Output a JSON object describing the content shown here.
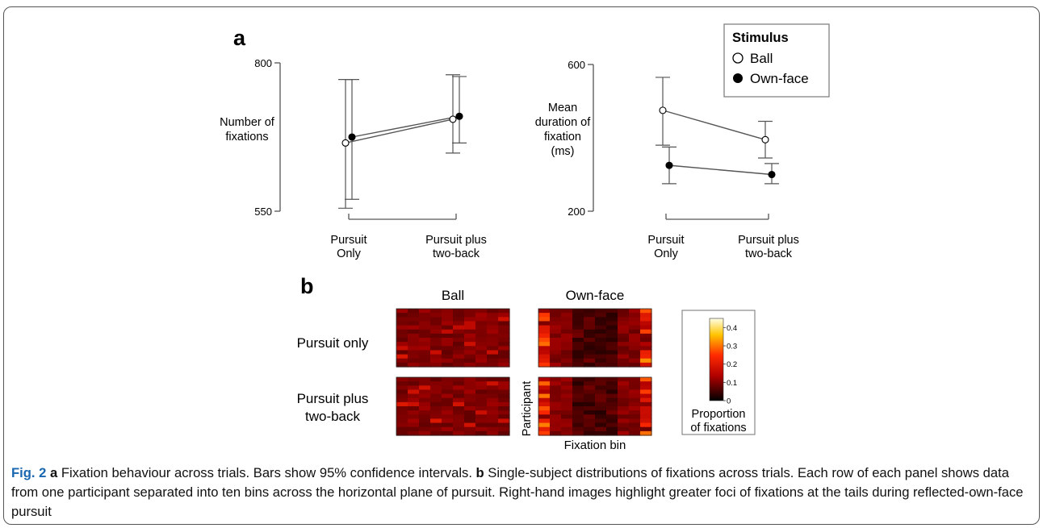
{
  "panel_a_label": "a",
  "panel_b_label": "b",
  "legend": {
    "title": "Stimulus",
    "items": [
      {
        "label": "Ball",
        "marker": "open-circle"
      },
      {
        "label": "Own-face",
        "marker": "filled-circle"
      }
    ]
  },
  "chart_data": [
    {
      "type": "line",
      "ylabel_lines": [
        "Number of",
        "fixations"
      ],
      "ylim": [
        550,
        800
      ],
      "yticks": [
        "800",
        "550"
      ],
      "categories": [
        [
          "Pursuit",
          "Only"
        ],
        [
          "Pursuit plus",
          "two-back"
        ]
      ],
      "series": [
        {
          "name": "Ball",
          "marker": "open-circle",
          "values": [
            665,
            705
          ],
          "ci_low": [
            555,
            648
          ],
          "ci_high": [
            772,
            780
          ]
        },
        {
          "name": "Own-face",
          "marker": "filled-circle",
          "values": [
            675,
            710
          ],
          "ci_low": [
            570,
            665
          ],
          "ci_high": [
            772,
            777
          ]
        }
      ]
    },
    {
      "type": "line",
      "ylabel_lines": [
        "Mean",
        "duration of",
        "fixation",
        "(ms)"
      ],
      "ylim": [
        200,
        600
      ],
      "yticks": [
        "600",
        "200"
      ],
      "categories": [
        [
          "Pursuit",
          "Only"
        ],
        [
          "Pursuit plus",
          "two-back"
        ]
      ],
      "series": [
        {
          "name": "Ball",
          "marker": "open-circle",
          "values": [
            475,
            395
          ],
          "ci_low": [
            380,
            345
          ],
          "ci_high": [
            565,
            445
          ]
        },
        {
          "name": "Own-face",
          "marker": "filled-circle",
          "values": [
            325,
            300
          ],
          "ci_low": [
            275,
            275
          ],
          "ci_high": [
            375,
            330
          ]
        }
      ]
    },
    {
      "type": "heatmap",
      "column_titles": [
        "Ball",
        "Own-face"
      ],
      "row_titles": [
        [
          "Pursuit only"
        ],
        [
          "Pursuit plus",
          "two-back"
        ]
      ],
      "ylabel": "Participant",
      "xlabel": "Fixation bin",
      "colorbar": {
        "ticks": [
          "0.4",
          "0.3",
          "0.2",
          "0.1",
          "0"
        ],
        "range": [
          0,
          0.45
        ],
        "title_lines": [
          "Proportion",
          "of fixations"
        ]
      },
      "panels": [
        {
          "stimulus": "Ball",
          "condition": "Pursuit only",
          "bins": 10,
          "participants": 14,
          "mean": 0.1,
          "tail_emphasis": false
        },
        {
          "stimulus": "Own-face",
          "condition": "Pursuit only",
          "bins": 10,
          "participants": 14,
          "mean": 0.1,
          "tail_emphasis": true
        },
        {
          "stimulus": "Ball",
          "condition": "Pursuit plus two-back",
          "bins": 10,
          "participants": 14,
          "mean": 0.1,
          "tail_emphasis": false
        },
        {
          "stimulus": "Own-face",
          "condition": "Pursuit plus two-back",
          "bins": 10,
          "participants": 14,
          "mean": 0.1,
          "tail_emphasis": true
        }
      ]
    }
  ],
  "caption": {
    "fig_label": "Fig. 2",
    "part_a_label": "a",
    "part_a_text": " Fixation behaviour across trials. Bars show 95% confidence intervals. ",
    "part_b_label": "b",
    "part_b_text": " Single-subject distributions of fixations across trials. Each row of each panel shows data from one participant separated into ten bins across the horizontal plane of pursuit. Right-hand images highlight greater foci of fixations at the tails during reflected-own-face pursuit"
  }
}
